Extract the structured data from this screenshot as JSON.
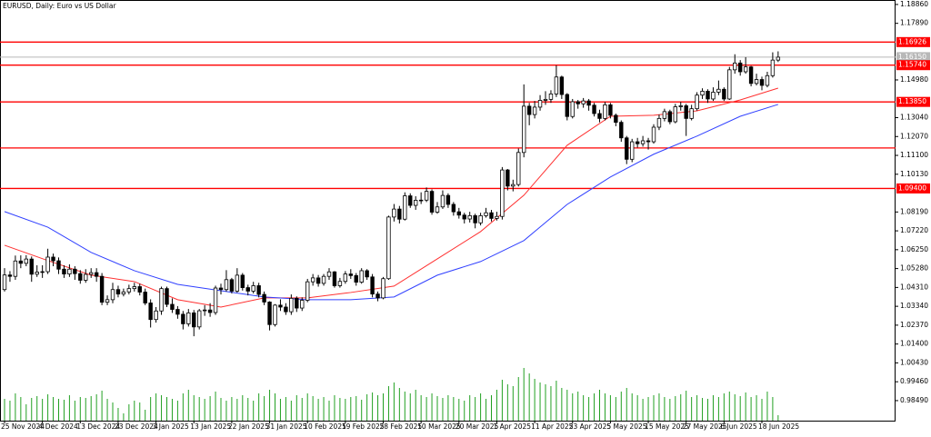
{
  "chart_data": {
    "type": "candlestick",
    "title": "EURUSD, Daily:  Euro vs US Dollar",
    "categories": [
      "25 Nov 2024",
      null,
      null,
      null,
      null,
      null,
      null,
      "4 Dec 2024",
      null,
      null,
      null,
      null,
      null,
      null,
      "13 Dec 2024",
      null,
      null,
      null,
      null,
      null,
      null,
      "23 Dec 2024",
      null,
      null,
      null,
      null,
      null,
      null,
      "3 Jan 2025",
      null,
      null,
      null,
      null,
      null,
      null,
      "13 Jan 2025",
      null,
      null,
      null,
      null,
      null,
      null,
      "22 Jan 2025",
      null,
      null,
      null,
      null,
      null,
      null,
      "31 Jan 2025",
      null,
      null,
      null,
      null,
      null,
      null,
      "10 Feb 2025",
      null,
      null,
      null,
      null,
      null,
      null,
      "19 Feb 2025",
      null,
      null,
      null,
      null,
      null,
      null,
      "28 Feb 2025",
      null,
      null,
      null,
      null,
      null,
      null,
      "10 Mar 2025",
      null,
      null,
      null,
      null,
      null,
      null,
      "20 Mar 2025",
      null,
      null,
      null,
      null,
      null,
      null,
      "1 Apr 2025",
      null,
      null,
      null,
      null,
      null,
      null,
      "11 Apr 2025",
      null,
      null,
      null,
      null,
      null,
      null,
      "23 Apr 2025",
      null,
      null,
      null,
      null,
      null,
      null,
      "5 May 2025",
      null,
      null,
      null,
      null,
      null,
      null,
      "15 May 2025",
      null,
      null,
      null,
      null,
      null,
      null,
      "27 May 2025",
      null,
      null,
      null,
      null,
      null,
      null,
      "6 Jun 2025",
      null,
      null,
      null,
      null,
      null,
      null,
      "18 Jun 2025",
      null,
      null,
      null
    ],
    "open": [
      1.042,
      1.0495,
      1.0488,
      1.0567,
      1.0555,
      1.0577,
      1.0499,
      1.051,
      1.0512,
      1.0587,
      1.0568,
      1.0525,
      1.05,
      1.0525,
      1.0502,
      1.0468,
      1.0498,
      1.0507,
      1.0488,
      1.0355,
      1.0368,
      1.042,
      1.0397,
      1.0408,
      1.0425,
      1.0435,
      1.0407,
      1.0351,
      1.0266,
      1.031,
      1.0425,
      1.0344,
      1.0318,
      1.0293,
      1.0244,
      1.03,
      1.0228,
      1.0311,
      1.0315,
      1.0302,
      1.0428,
      1.042,
      1.0471,
      1.0412,
      1.0494,
      1.043,
      1.0412,
      1.044,
      1.0395,
      1.0356,
      1.024,
      1.034,
      1.033,
      1.0306,
      1.0375,
      1.0325,
      1.0365,
      1.046,
      1.048,
      1.0452,
      1.0488,
      1.0511,
      1.044,
      1.0462,
      1.05,
      1.0492,
      1.0458,
      1.0517,
      1.0485,
      1.0397,
      1.0377,
      1.0476,
      1.0793,
      1.0834,
      1.0782,
      1.0902,
      1.0853,
      1.0879,
      1.088,
      1.0925,
      1.0818,
      1.0845,
      1.0904,
      1.0858,
      1.082,
      1.0803,
      1.0783,
      1.08,
      1.0763,
      1.08,
      1.0815,
      1.0786,
      1.0796,
      1.1035,
      1.0952,
      1.096,
      1.1125,
      1.1363,
      1.132,
      1.1358,
      1.1393,
      1.1398,
      1.1426,
      1.1513,
      1.1423,
      1.131,
      1.1386,
      1.1375,
      1.139,
      1.1368,
      1.1325,
      1.13,
      1.137,
      1.1316,
      1.128,
      1.12,
      1.109,
      1.118,
      1.117,
      1.1185,
      1.118,
      1.1255,
      1.13,
      1.1335,
      1.1283,
      1.136,
      1.1365,
      1.13,
      1.135,
      1.142,
      1.144,
      1.14,
      1.1435,
      1.145,
      1.14,
      1.155,
      1.1585,
      1.154,
      1.1565,
      1.148,
      1.15,
      1.147,
      1.152,
      1.16
    ],
    "high": [
      1.053,
      1.0515,
      1.0595,
      1.0596,
      1.0597,
      1.059,
      1.0545,
      1.0545,
      1.063,
      1.0605,
      1.0585,
      1.0545,
      1.055,
      1.054,
      1.052,
      1.0525,
      1.053,
      1.053,
      1.0505,
      1.039,
      1.0455,
      1.044,
      1.0425,
      1.0445,
      1.0455,
      1.045,
      1.0425,
      1.037,
      1.033,
      1.0435,
      1.0435,
      1.0375,
      1.0335,
      1.031,
      1.032,
      1.0315,
      1.032,
      1.034,
      1.035,
      1.044,
      1.045,
      1.052,
      1.048,
      1.053,
      1.0505,
      1.0445,
      1.046,
      1.0455,
      1.041,
      1.036,
      1.0345,
      1.037,
      1.035,
      1.0395,
      1.0385,
      1.038,
      1.0475,
      1.05,
      1.0495,
      1.05,
      1.053,
      1.0515,
      1.048,
      1.0515,
      1.0525,
      1.0505,
      1.053,
      1.0525,
      1.05,
      1.041,
      1.0485,
      1.08,
      1.086,
      1.085,
      1.092,
      1.0915,
      1.09,
      1.092,
      1.0945,
      1.0935,
      1.087,
      1.093,
      1.0915,
      1.087,
      1.084,
      1.0815,
      1.082,
      1.081,
      1.0815,
      1.084,
      1.083,
      1.082,
      1.105,
      1.104,
      1.0985,
      1.1145,
      1.1475,
      1.138,
      1.139,
      1.142,
      1.144,
      1.1445,
      1.1573,
      1.152,
      1.143,
      1.14,
      1.1395,
      1.1405,
      1.14,
      1.138,
      1.1345,
      1.1385,
      1.138,
      1.1325,
      1.129,
      1.121,
      1.1195,
      1.12,
      1.121,
      1.12,
      1.127,
      1.132,
      1.135,
      1.1345,
      1.1375,
      1.1385,
      1.1375,
      1.137,
      1.1435,
      1.1455,
      1.145,
      1.146,
      1.1495,
      1.146,
      1.1565,
      1.163,
      1.16,
      1.1615,
      1.157,
      1.153,
      1.1515,
      1.154,
      1.164,
      1.1645
    ],
    "low": [
      1.041,
      1.046,
      1.047,
      1.053,
      1.054,
      1.046,
      1.0485,
      1.048,
      1.05,
      1.054,
      1.05,
      1.048,
      1.0485,
      1.047,
      1.045,
      1.0455,
      1.048,
      1.046,
      1.034,
      1.034,
      1.035,
      1.038,
      1.0385,
      1.0395,
      1.041,
      1.039,
      1.034,
      1.0225,
      1.025,
      1.029,
      1.033,
      1.03,
      1.027,
      1.0215,
      1.023,
      1.018,
      1.0215,
      1.0285,
      1.028,
      1.029,
      1.0395,
      1.041,
      1.04,
      1.0405,
      1.0415,
      1.039,
      1.04,
      1.038,
      1.034,
      1.021,
      1.023,
      1.031,
      1.029,
      1.029,
      1.0305,
      1.031,
      1.0355,
      1.044,
      1.0435,
      1.044,
      1.047,
      1.043,
      1.043,
      1.045,
      1.0475,
      1.044,
      1.045,
      1.047,
      1.038,
      1.036,
      1.037,
      1.047,
      1.077,
      1.076,
      1.0775,
      1.084,
      1.083,
      1.086,
      1.087,
      1.0805,
      1.081,
      1.0835,
      1.084,
      1.08,
      1.0785,
      1.076,
      1.0765,
      1.0735,
      1.075,
      1.079,
      1.077,
      1.0775,
      1.078,
      1.093,
      1.0925,
      1.095,
      1.11,
      1.1265,
      1.13,
      1.134,
      1.137,
      1.138,
      1.141,
      1.14,
      1.129,
      1.13,
      1.135,
      1.1355,
      1.134,
      1.131,
      1.128,
      1.129,
      1.13,
      1.126,
      1.118,
      1.1065,
      1.1075,
      1.115,
      1.1155,
      1.114,
      1.117,
      1.124,
      1.1285,
      1.127,
      1.1275,
      1.134,
      1.121,
      1.129,
      1.134,
      1.14,
      1.138,
      1.139,
      1.142,
      1.139,
      1.1395,
      1.153,
      1.152,
      1.153,
      1.1465,
      1.147,
      1.1445,
      1.146,
      1.151,
      1.159
    ],
    "close": [
      1.0495,
      1.0488,
      1.0567,
      1.0555,
      1.0577,
      1.0499,
      1.051,
      1.0512,
      1.0587,
      1.0568,
      1.0525,
      1.05,
      1.0525,
      1.0502,
      1.0468,
      1.0498,
      1.0507,
      1.0488,
      1.0355,
      1.0368,
      1.042,
      1.0397,
      1.0408,
      1.0425,
      1.0435,
      1.0407,
      1.0351,
      1.0266,
      1.031,
      1.0425,
      1.0344,
      1.0318,
      1.0293,
      1.0244,
      1.03,
      1.0228,
      1.0311,
      1.0315,
      1.0302,
      1.0428,
      1.042,
      1.0471,
      1.0412,
      1.0494,
      1.043,
      1.0412,
      1.044,
      1.0395,
      1.0356,
      1.024,
      1.034,
      1.033,
      1.0306,
      1.0375,
      1.0325,
      1.0365,
      1.046,
      1.048,
      1.0452,
      1.0488,
      1.0511,
      1.044,
      1.0462,
      1.05,
      1.0492,
      1.0458,
      1.0517,
      1.0485,
      1.0397,
      1.0377,
      1.0476,
      1.0793,
      1.0834,
      1.0782,
      1.0902,
      1.0853,
      1.0879,
      1.088,
      1.0925,
      1.0818,
      1.0845,
      1.0904,
      1.0858,
      1.082,
      1.0803,
      1.0783,
      1.08,
      1.0763,
      1.08,
      1.0815,
      1.0786,
      1.0796,
      1.1035,
      1.0952,
      1.096,
      1.1125,
      1.1363,
      1.132,
      1.1358,
      1.1393,
      1.1398,
      1.1426,
      1.1513,
      1.1423,
      1.131,
      1.1386,
      1.1375,
      1.139,
      1.1368,
      1.1325,
      1.13,
      1.137,
      1.1316,
      1.128,
      1.12,
      1.109,
      1.118,
      1.117,
      1.1185,
      1.118,
      1.1255,
      1.13,
      1.1335,
      1.1283,
      1.136,
      1.1365,
      1.13,
      1.135,
      1.142,
      1.144,
      1.14,
      1.1435,
      1.145,
      1.14,
      1.155,
      1.1585,
      1.154,
      1.1565,
      1.148,
      1.15,
      1.147,
      1.152,
      1.16,
      1.1615
    ],
    "up_color": "#ffffff",
    "down_color": "#000000",
    "outline_color": "#000000",
    "series": [
      {
        "color": "#ff3030",
        "x": [
          0,
          8,
          16,
          24,
          32,
          40,
          48,
          56,
          64,
          72,
          80,
          88,
          96,
          104,
          112,
          120,
          128,
          136,
          143
        ],
        "values": [
          1.0648,
          1.0569,
          1.0494,
          1.0461,
          1.0368,
          1.033,
          1.0377,
          1.0377,
          1.0405,
          1.0438,
          1.0578,
          1.0718,
          1.0905,
          1.1162,
          1.1311,
          1.1316,
          1.1339,
          1.1395,
          1.1456
        ]
      },
      {
        "color": "#3040ff",
        "x": [
          0,
          8,
          16,
          24,
          32,
          40,
          48,
          56,
          64,
          72,
          80,
          88,
          96,
          104,
          112,
          120,
          128,
          136,
          143
        ],
        "values": [
          1.0821,
          1.0741,
          1.0611,
          1.0517,
          1.0447,
          1.0414,
          1.0382,
          1.0368,
          1.0368,
          1.0382,
          1.0494,
          1.0564,
          1.0672,
          1.0858,
          1.0999,
          1.1116,
          1.1209,
          1.1311,
          1.1372
        ]
      }
    ],
    "levels_color": "#ff0000",
    "levels": [
      {
        "value": 1.16926,
        "label": "1.16926"
      },
      {
        "value": 1.1574,
        "label": "1.15740"
      },
      {
        "value": 1.1385,
        "label": "1.13850"
      },
      1.1148,
      {
        "value": 1.094,
        "label": "1.09400"
      }
    ],
    "current_price": {
      "value": 1.1615,
      "label": "1.16150",
      "color": "#b8b8b8"
    },
    "volume": {
      "color": "#22a022",
      "lim": [
        0,
        100
      ],
      "values": [
        24,
        22,
        30,
        26,
        18,
        25,
        27,
        24,
        29,
        26,
        24,
        23,
        28,
        22,
        26,
        25,
        27,
        29,
        33,
        24,
        20,
        14,
        8,
        18,
        22,
        20,
        12,
        26,
        30,
        28,
        26,
        24,
        22,
        30,
        34,
        28,
        26,
        24,
        27,
        32,
        25,
        22,
        26,
        24,
        28,
        25,
        22,
        30,
        27,
        34,
        30,
        24,
        26,
        22,
        28,
        25,
        30,
        27,
        24,
        26,
        22,
        28,
        25,
        24,
        26,
        27,
        23,
        29,
        31,
        28,
        30,
        38,
        42,
        36,
        32,
        30,
        34,
        28,
        26,
        30,
        27,
        25,
        28,
        26,
        24,
        22,
        28,
        26,
        30,
        24,
        28,
        34,
        45,
        40,
        38,
        48,
        58,
        52,
        46,
        42,
        40,
        38,
        44,
        36,
        34,
        30,
        32,
        28,
        26,
        30,
        34,
        30,
        28,
        26,
        32,
        36,
        30,
        28,
        24,
        26,
        28,
        30,
        26,
        24,
        27,
        29,
        33,
        26,
        28,
        25,
        24,
        28,
        26,
        30,
        32,
        29,
        27,
        31,
        26,
        28,
        24,
        32,
        26,
        6
      ]
    },
    "ylim": [
      0.9746,
      1.1909
    ],
    "yticks": [
      {
        "value": 1.1886,
        "label": "1.18860"
      },
      {
        "value": 1.1789,
        "label": "1.17890"
      },
      {
        "value": 1.1498,
        "label": "1.14980"
      },
      {
        "value": 1.1304,
        "label": "1.13040"
      },
      {
        "value": 1.1207,
        "label": "1.12070"
      },
      {
        "value": 1.111,
        "label": "1.11100"
      },
      {
        "value": 1.1013,
        "label": "1.10130"
      },
      {
        "value": 1.0819,
        "label": "1.08190"
      },
      {
        "value": 1.0722,
        "label": "1.07220"
      },
      {
        "value": 1.0625,
        "label": "1.06250"
      },
      {
        "value": 1.0528,
        "label": "1.05280"
      },
      {
        "value": 1.0431,
        "label": "1.04310"
      },
      {
        "value": 1.0334,
        "label": "1.03340"
      },
      {
        "value": 1.0237,
        "label": "1.02370"
      },
      {
        "value": 1.014,
        "label": "1.01400"
      },
      {
        "value": 1.0043,
        "label": "1.00430"
      },
      {
        "value": 0.9946,
        "label": "0.99460"
      },
      {
        "value": 0.9849,
        "label": "0.98490"
      }
    ],
    "grid": false
  }
}
